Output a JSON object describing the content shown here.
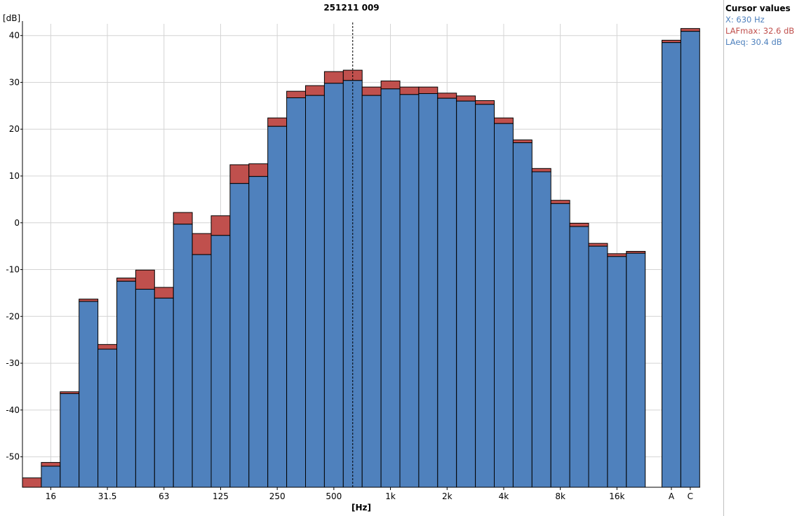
{
  "colors": {
    "laeq": "#4f81bd",
    "lafmax": "#c0504d",
    "grid": "#d4d4d4",
    "axis": "#000000",
    "cursor": "#000000"
  },
  "cursor_panel": {
    "title": "Cursor values",
    "x": "X: 630 Hz",
    "lafmax": "LAFmax: 32.6 dB",
    "laeq": "LAeq: 30.4 dB"
  },
  "chart_data": {
    "type": "bar",
    "title": "251211 009",
    "xlabel": "[Hz]",
    "ylabel": "[dB]",
    "ylim": [
      -56.5,
      42.5
    ],
    "yticks": [
      -50,
      -40,
      -30,
      -20,
      -10,
      0,
      10,
      20,
      30,
      40
    ],
    "grid": true,
    "cursor_band": "630",
    "bands": [
      "12.5",
      "16",
      "20",
      "25",
      "31.5",
      "40",
      "50",
      "63",
      "80",
      "100",
      "125",
      "160",
      "200",
      "250",
      "315",
      "400",
      "500",
      "630",
      "800",
      "1k",
      "1.25k",
      "1.6k",
      "2k",
      "2.5k",
      "3.15k",
      "4k",
      "5k",
      "6.3k",
      "8k",
      "10k",
      "12.5k",
      "16k",
      "20k"
    ],
    "x_tick_labels": [
      {
        "band": "16",
        "label": "16"
      },
      {
        "band": "31.5",
        "label": "31.5"
      },
      {
        "band": "63",
        "label": "63"
      },
      {
        "band": "125",
        "label": "125"
      },
      {
        "band": "250",
        "label": "250"
      },
      {
        "band": "500",
        "label": "500"
      },
      {
        "band": "1k",
        "label": "1k"
      },
      {
        "band": "2k",
        "label": "2k"
      },
      {
        "band": "4k",
        "label": "4k"
      },
      {
        "band": "8k",
        "label": "8k"
      },
      {
        "band": "16k",
        "label": "16k"
      }
    ],
    "series": [
      {
        "name": "LAFmax",
        "values": [
          -54.5,
          -51.2,
          -36.1,
          -16.3,
          -26.0,
          -11.8,
          -10.1,
          -13.8,
          2.2,
          -2.3,
          1.5,
          12.4,
          12.6,
          22.4,
          28.1,
          29.3,
          32.3,
          32.6,
          29.0,
          30.3,
          29.0,
          29.0,
          27.7,
          27.1,
          26.1,
          22.4,
          17.7,
          11.6,
          4.8,
          -0.1,
          -4.4,
          -6.6,
          -6.1
        ]
      },
      {
        "name": "LAeq",
        "values": [
          -57.0,
          -52.0,
          -36.5,
          -16.8,
          -27.0,
          -12.5,
          -14.2,
          -16.1,
          -0.3,
          -6.8,
          -2.7,
          8.4,
          9.9,
          20.6,
          26.7,
          27.2,
          29.8,
          30.4,
          27.2,
          28.6,
          27.4,
          27.6,
          26.6,
          26.0,
          25.3,
          21.2,
          17.1,
          10.9,
          4.1,
          -0.8,
          -5.0,
          -7.2,
          -6.5
        ]
      }
    ],
    "totals": {
      "labels": [
        "A",
        "C"
      ],
      "lafmax": [
        39.0,
        41.5
      ],
      "laeq": [
        38.5,
        40.9
      ]
    }
  }
}
